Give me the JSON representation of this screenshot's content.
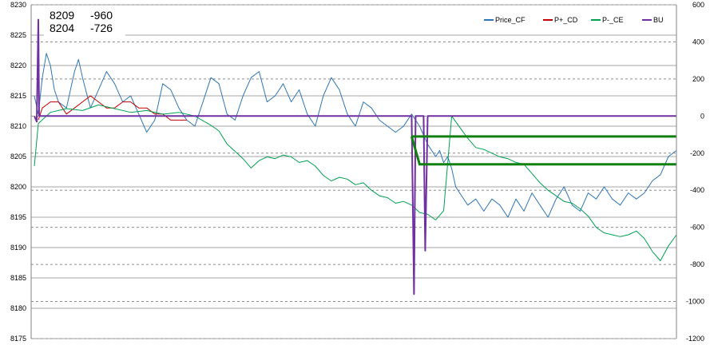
{
  "chart_data": {
    "type": "line",
    "title": "",
    "xlabel": "",
    "ylabel": "",
    "ylim": [
      8175,
      8230
    ],
    "y2lim": [
      -1200,
      600
    ],
    "y_ticks": [
      "8230",
      "8225",
      "8220",
      "8215",
      "8210",
      "8205",
      "8200",
      "8195",
      "8190",
      "8185",
      "8180",
      "8175"
    ],
    "y2_ticks": [
      "600",
      "400",
      "200",
      "0",
      "-200",
      "-400",
      "-600",
      "-800",
      "-1000",
      "-1200"
    ],
    "grid": true,
    "legend_position": "top-right",
    "annotations": [
      {
        "price": "8209",
        "delta": "-960"
      },
      {
        "price": "8204",
        "delta": "-726"
      }
    ],
    "legend": [
      {
        "name": "Price_CF",
        "color": "#2e75b6"
      },
      {
        "name": "P+_CD",
        "color": "#c00000"
      },
      {
        "name": "P-_CE",
        "color": "#00a050"
      },
      {
        "name": "BU",
        "color": "#7030a0"
      }
    ],
    "series": [
      {
        "name": "Price_CF",
        "axis": "left",
        "x": [
          0,
          5,
          10,
          15,
          20,
          25,
          30,
          40,
          50,
          55,
          60,
          70,
          80,
          90,
          100,
          110,
          120,
          130,
          140,
          150,
          160,
          170,
          180,
          190,
          200,
          210,
          220,
          230,
          240,
          250,
          260,
          270,
          280,
          290,
          300,
          310,
          320,
          330,
          340,
          350,
          360,
          370,
          380,
          390,
          400,
          410,
          420,
          430,
          440,
          450,
          460,
          470,
          480,
          490,
          500,
          505,
          510,
          515,
          520,
          525,
          530,
          540,
          550,
          560,
          570,
          580,
          590,
          600,
          610,
          620,
          630,
          640,
          650,
          660,
          670,
          680,
          690,
          700,
          710,
          720,
          730,
          740,
          750,
          760,
          770,
          780,
          790,
          800
        ],
        "values": [
          8215,
          8212,
          8218,
          8222,
          8220,
          8216,
          8214,
          8213,
          8219,
          8221,
          8218,
          8213,
          8216,
          8219,
          8217,
          8214,
          8215,
          8212,
          8209,
          8211,
          8217,
          8216,
          8213,
          8211,
          8210,
          8214,
          8218,
          8217,
          8212,
          8211,
          8215,
          8218,
          8219,
          8214,
          8215,
          8217,
          8214,
          8216,
          8212,
          8210,
          8215,
          8218,
          8216,
          8212,
          8210,
          8214,
          8213,
          8211,
          8210,
          8209,
          8210,
          8212,
          8210,
          8207,
          8205,
          8206,
          8204,
          8205,
          8203,
          8200,
          8199,
          8197,
          8198,
          8196,
          8198,
          8197,
          8195,
          8198,
          8196,
          8199,
          8197,
          8195,
          8198,
          8200,
          8197,
          8196,
          8199,
          8198,
          8200,
          8198,
          8197,
          8199,
          8198,
          8199,
          8201,
          8202,
          8205,
          8206
        ]
      },
      {
        "name": "P+_CD",
        "axis": "left",
        "x": [
          5,
          10,
          20,
          30,
          40,
          50,
          60,
          70,
          80,
          90,
          100,
          110,
          120,
          130,
          140,
          150,
          160,
          170,
          180,
          190
        ],
        "values": [
          8211,
          8213,
          8214,
          8214,
          8212,
          8213,
          8214,
          8215,
          8214,
          8213,
          8213,
          8214,
          8214,
          8213,
          8213,
          8212,
          8212,
          8211,
          8211,
          8211
        ]
      },
      {
        "name": "P-_CE",
        "axis": "right",
        "x": [
          0,
          5,
          20,
          40,
          60,
          80,
          100,
          120,
          140,
          160,
          180,
          200,
          220,
          230,
          240,
          250,
          260,
          270,
          280,
          290,
          300,
          310,
          320,
          330,
          340,
          350,
          360,
          370,
          380,
          390,
          400,
          410,
          420,
          430,
          440,
          450,
          460,
          470,
          480,
          490,
          500,
          510,
          520,
          530,
          540,
          550,
          560,
          570,
          580,
          590,
          600,
          610,
          620,
          630,
          640,
          650,
          660,
          670,
          680,
          690,
          700,
          710,
          720,
          730,
          740,
          750,
          760,
          770,
          780,
          790,
          800
        ],
        "values": [
          -270,
          -40,
          20,
          40,
          30,
          60,
          40,
          20,
          30,
          10,
          20,
          0,
          -50,
          -80,
          -150,
          -190,
          -230,
          -280,
          -240,
          -220,
          -230,
          -210,
          -220,
          -250,
          -240,
          -270,
          -320,
          -350,
          -330,
          -340,
          -370,
          -360,
          -400,
          -430,
          -440,
          -470,
          -460,
          -480,
          -520,
          -530,
          -560,
          -510,
          0,
          -60,
          -120,
          -170,
          -180,
          -200,
          -220,
          -230,
          -250,
          -260,
          -310,
          -360,
          -400,
          -430,
          -460,
          -470,
          -500,
          -540,
          -600,
          -630,
          -640,
          -650,
          -640,
          -620,
          -660,
          -730,
          -780,
          -700,
          -640
        ]
      },
      {
        "name": "BU",
        "axis": "right",
        "x": [
          0,
          3,
          5,
          6,
          10,
          20,
          50,
          100,
          200,
          300,
          400,
          450,
          470,
          473,
          475,
          480,
          485,
          487,
          490,
          500,
          600,
          700,
          800
        ],
        "values": [
          0,
          -30,
          520,
          0,
          0,
          0,
          0,
          0,
          0,
          0,
          0,
          0,
          0,
          -960,
          0,
          0,
          0,
          -726,
          0,
          0,
          0,
          0,
          0
        ]
      }
    ],
    "reference_lines": [
      {
        "label": "",
        "color": "#108010",
        "x": [
          470,
          800
        ],
        "values": [
          -110,
          -110
        ]
      },
      {
        "label": "",
        "color": "#108010",
        "x": [
          470,
          480,
          800
        ],
        "values": [
          -110,
          -260,
          -260
        ]
      }
    ]
  }
}
